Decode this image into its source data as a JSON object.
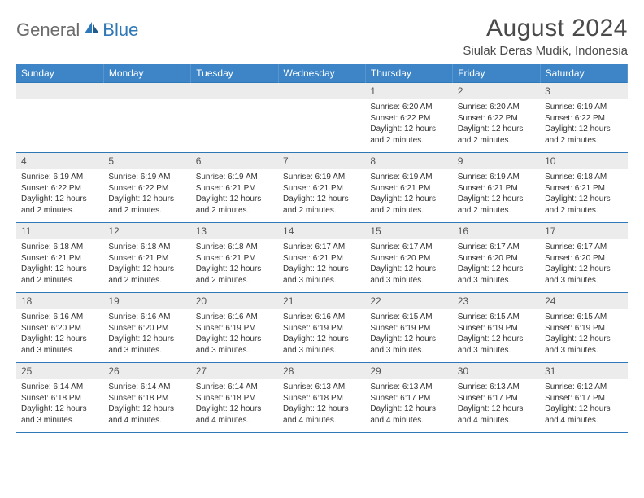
{
  "brand": {
    "general": "General",
    "blue": "Blue"
  },
  "title": "August 2024",
  "location": "Siulak Deras Mudik, Indonesia",
  "colors": {
    "header_bg": "#3d85c6",
    "border": "#2f78b7",
    "daynum_bg": "#ececec",
    "text": "#333333",
    "logo_gray": "#6b6b6b",
    "logo_blue": "#2f78b7"
  },
  "weekdays": [
    "Sunday",
    "Monday",
    "Tuesday",
    "Wednesday",
    "Thursday",
    "Friday",
    "Saturday"
  ],
  "weeks": [
    [
      {
        "day": "",
        "sunrise": "",
        "sunset": "",
        "daylight": ""
      },
      {
        "day": "",
        "sunrise": "",
        "sunset": "",
        "daylight": ""
      },
      {
        "day": "",
        "sunrise": "",
        "sunset": "",
        "daylight": ""
      },
      {
        "day": "",
        "sunrise": "",
        "sunset": "",
        "daylight": ""
      },
      {
        "day": "1",
        "sunrise": "Sunrise: 6:20 AM",
        "sunset": "Sunset: 6:22 PM",
        "daylight": "Daylight: 12 hours and 2 minutes."
      },
      {
        "day": "2",
        "sunrise": "Sunrise: 6:20 AM",
        "sunset": "Sunset: 6:22 PM",
        "daylight": "Daylight: 12 hours and 2 minutes."
      },
      {
        "day": "3",
        "sunrise": "Sunrise: 6:19 AM",
        "sunset": "Sunset: 6:22 PM",
        "daylight": "Daylight: 12 hours and 2 minutes."
      }
    ],
    [
      {
        "day": "4",
        "sunrise": "Sunrise: 6:19 AM",
        "sunset": "Sunset: 6:22 PM",
        "daylight": "Daylight: 12 hours and 2 minutes."
      },
      {
        "day": "5",
        "sunrise": "Sunrise: 6:19 AM",
        "sunset": "Sunset: 6:22 PM",
        "daylight": "Daylight: 12 hours and 2 minutes."
      },
      {
        "day": "6",
        "sunrise": "Sunrise: 6:19 AM",
        "sunset": "Sunset: 6:21 PM",
        "daylight": "Daylight: 12 hours and 2 minutes."
      },
      {
        "day": "7",
        "sunrise": "Sunrise: 6:19 AM",
        "sunset": "Sunset: 6:21 PM",
        "daylight": "Daylight: 12 hours and 2 minutes."
      },
      {
        "day": "8",
        "sunrise": "Sunrise: 6:19 AM",
        "sunset": "Sunset: 6:21 PM",
        "daylight": "Daylight: 12 hours and 2 minutes."
      },
      {
        "day": "9",
        "sunrise": "Sunrise: 6:19 AM",
        "sunset": "Sunset: 6:21 PM",
        "daylight": "Daylight: 12 hours and 2 minutes."
      },
      {
        "day": "10",
        "sunrise": "Sunrise: 6:18 AM",
        "sunset": "Sunset: 6:21 PM",
        "daylight": "Daylight: 12 hours and 2 minutes."
      }
    ],
    [
      {
        "day": "11",
        "sunrise": "Sunrise: 6:18 AM",
        "sunset": "Sunset: 6:21 PM",
        "daylight": "Daylight: 12 hours and 2 minutes."
      },
      {
        "day": "12",
        "sunrise": "Sunrise: 6:18 AM",
        "sunset": "Sunset: 6:21 PM",
        "daylight": "Daylight: 12 hours and 2 minutes."
      },
      {
        "day": "13",
        "sunrise": "Sunrise: 6:18 AM",
        "sunset": "Sunset: 6:21 PM",
        "daylight": "Daylight: 12 hours and 2 minutes."
      },
      {
        "day": "14",
        "sunrise": "Sunrise: 6:17 AM",
        "sunset": "Sunset: 6:21 PM",
        "daylight": "Daylight: 12 hours and 3 minutes."
      },
      {
        "day": "15",
        "sunrise": "Sunrise: 6:17 AM",
        "sunset": "Sunset: 6:20 PM",
        "daylight": "Daylight: 12 hours and 3 minutes."
      },
      {
        "day": "16",
        "sunrise": "Sunrise: 6:17 AM",
        "sunset": "Sunset: 6:20 PM",
        "daylight": "Daylight: 12 hours and 3 minutes."
      },
      {
        "day": "17",
        "sunrise": "Sunrise: 6:17 AM",
        "sunset": "Sunset: 6:20 PM",
        "daylight": "Daylight: 12 hours and 3 minutes."
      }
    ],
    [
      {
        "day": "18",
        "sunrise": "Sunrise: 6:16 AM",
        "sunset": "Sunset: 6:20 PM",
        "daylight": "Daylight: 12 hours and 3 minutes."
      },
      {
        "day": "19",
        "sunrise": "Sunrise: 6:16 AM",
        "sunset": "Sunset: 6:20 PM",
        "daylight": "Daylight: 12 hours and 3 minutes."
      },
      {
        "day": "20",
        "sunrise": "Sunrise: 6:16 AM",
        "sunset": "Sunset: 6:19 PM",
        "daylight": "Daylight: 12 hours and 3 minutes."
      },
      {
        "day": "21",
        "sunrise": "Sunrise: 6:16 AM",
        "sunset": "Sunset: 6:19 PM",
        "daylight": "Daylight: 12 hours and 3 minutes."
      },
      {
        "day": "22",
        "sunrise": "Sunrise: 6:15 AM",
        "sunset": "Sunset: 6:19 PM",
        "daylight": "Daylight: 12 hours and 3 minutes."
      },
      {
        "day": "23",
        "sunrise": "Sunrise: 6:15 AM",
        "sunset": "Sunset: 6:19 PM",
        "daylight": "Daylight: 12 hours and 3 minutes."
      },
      {
        "day": "24",
        "sunrise": "Sunrise: 6:15 AM",
        "sunset": "Sunset: 6:19 PM",
        "daylight": "Daylight: 12 hours and 3 minutes."
      }
    ],
    [
      {
        "day": "25",
        "sunrise": "Sunrise: 6:14 AM",
        "sunset": "Sunset: 6:18 PM",
        "daylight": "Daylight: 12 hours and 3 minutes."
      },
      {
        "day": "26",
        "sunrise": "Sunrise: 6:14 AM",
        "sunset": "Sunset: 6:18 PM",
        "daylight": "Daylight: 12 hours and 4 minutes."
      },
      {
        "day": "27",
        "sunrise": "Sunrise: 6:14 AM",
        "sunset": "Sunset: 6:18 PM",
        "daylight": "Daylight: 12 hours and 4 minutes."
      },
      {
        "day": "28",
        "sunrise": "Sunrise: 6:13 AM",
        "sunset": "Sunset: 6:18 PM",
        "daylight": "Daylight: 12 hours and 4 minutes."
      },
      {
        "day": "29",
        "sunrise": "Sunrise: 6:13 AM",
        "sunset": "Sunset: 6:17 PM",
        "daylight": "Daylight: 12 hours and 4 minutes."
      },
      {
        "day": "30",
        "sunrise": "Sunrise: 6:13 AM",
        "sunset": "Sunset: 6:17 PM",
        "daylight": "Daylight: 12 hours and 4 minutes."
      },
      {
        "day": "31",
        "sunrise": "Sunrise: 6:12 AM",
        "sunset": "Sunset: 6:17 PM",
        "daylight": "Daylight: 12 hours and 4 minutes."
      }
    ]
  ]
}
